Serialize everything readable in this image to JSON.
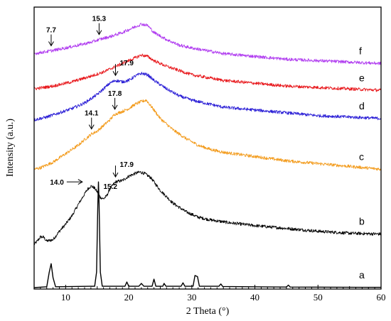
{
  "chart_data": {
    "type": "line",
    "title": "",
    "xlabel": "2 Theta (°)",
    "ylabel": "Intensity (a.u.)",
    "xlim": [
      5,
      60
    ],
    "ylim": [
      0,
      100
    ],
    "x_ticks": [
      10,
      20,
      30,
      40,
      50,
      60
    ],
    "y_ticks_shown": false,
    "grid": false,
    "legend": "none",
    "series": [
      {
        "name": "a",
        "color": "#000000",
        "offset": 0,
        "points": [
          [
            5,
            0.5
          ],
          [
            7,
            0.8
          ],
          [
            7.4,
            6
          ],
          [
            7.7,
            9
          ],
          [
            8,
            4
          ],
          [
            8.4,
            0.8
          ],
          [
            14.6,
            1
          ],
          [
            14.9,
            6
          ],
          [
            15.1,
            30
          ],
          [
            15.2,
            38
          ],
          [
            15.3,
            30
          ],
          [
            15.5,
            6
          ],
          [
            15.8,
            1
          ],
          [
            19.4,
            1
          ],
          [
            19.7,
            2.5
          ],
          [
            20,
            1
          ],
          [
            21.6,
            1
          ],
          [
            22,
            2
          ],
          [
            22.4,
            1
          ],
          [
            23.7,
            1
          ],
          [
            24,
            3.5
          ],
          [
            24.3,
            1
          ],
          [
            25.4,
            1
          ],
          [
            25.6,
            2
          ],
          [
            25.9,
            1
          ],
          [
            28.3,
            1
          ],
          [
            28.6,
            2.2
          ],
          [
            28.9,
            1
          ],
          [
            30.2,
            1
          ],
          [
            30.5,
            4.8
          ],
          [
            30.9,
            4.4
          ],
          [
            31.2,
            1
          ],
          [
            34.3,
            1
          ],
          [
            34.6,
            1.8
          ],
          [
            34.9,
            0.9
          ],
          [
            45,
            0.7
          ],
          [
            45.3,
            1.4
          ],
          [
            45.6,
            0.7
          ],
          [
            60,
            0.6
          ]
        ]
      },
      {
        "name": "b",
        "color": "#000000",
        "offset": 13,
        "points": [
          [
            5,
            15.8
          ],
          [
            5.5,
            17
          ],
          [
            6,
            18.5
          ],
          [
            6.5,
            18.4
          ],
          [
            7,
            17
          ],
          [
            8,
            17.5
          ],
          [
            9,
            20.5
          ],
          [
            10,
            23
          ],
          [
            11,
            26
          ],
          [
            12,
            30
          ],
          [
            12.8,
            33
          ],
          [
            13.5,
            35.5
          ],
          [
            14,
            36.5
          ],
          [
            14.5,
            36
          ],
          [
            15,
            34.5
          ],
          [
            15.5,
            32.5
          ],
          [
            16,
            32
          ],
          [
            16.5,
            33
          ],
          [
            17,
            35.5
          ],
          [
            17.9,
            38
          ],
          [
            19,
            38.5
          ],
          [
            20,
            40
          ],
          [
            21,
            41
          ],
          [
            21.8,
            41.5
          ],
          [
            22.5,
            41
          ],
          [
            23.5,
            39.5
          ],
          [
            25,
            35
          ],
          [
            27,
            30.5
          ],
          [
            29,
            27.5
          ],
          [
            31,
            25.5
          ],
          [
            33,
            24.5
          ],
          [
            36,
            23.5
          ],
          [
            40,
            22.5
          ],
          [
            45,
            21.5
          ],
          [
            50,
            20.5
          ],
          [
            55,
            19.8
          ],
          [
            60,
            19.5
          ]
        ]
      },
      {
        "name": "c",
        "color": "#f39c1e",
        "offset": 40,
        "points": [
          [
            5,
            42.5
          ],
          [
            6,
            43
          ],
          [
            8,
            45
          ],
          [
            10,
            48
          ],
          [
            12,
            51
          ],
          [
            13,
            53
          ],
          [
            14.1,
            55
          ],
          [
            15,
            56
          ],
          [
            16,
            58
          ],
          [
            17,
            60
          ],
          [
            17.8,
            62
          ],
          [
            19,
            63
          ],
          [
            20,
            64
          ],
          [
            21,
            65.5
          ],
          [
            22,
            66.5
          ],
          [
            22.8,
            67
          ],
          [
            24,
            63.5
          ],
          [
            25,
            60.5
          ],
          [
            27,
            56.5
          ],
          [
            29,
            53.5
          ],
          [
            31,
            51
          ],
          [
            33,
            49.5
          ],
          [
            35,
            48.5
          ],
          [
            40,
            47
          ],
          [
            45,
            45.5
          ],
          [
            50,
            44.5
          ],
          [
            55,
            43.5
          ],
          [
            60,
            42.5
          ]
        ]
      },
      {
        "name": "d",
        "color": "#2b1fd6",
        "offset": 58,
        "points": [
          [
            5,
            60
          ],
          [
            7,
            61
          ],
          [
            9,
            62.5
          ],
          [
            11,
            64
          ],
          [
            13,
            66
          ],
          [
            15,
            69
          ],
          [
            16,
            71
          ],
          [
            17,
            73
          ],
          [
            17.9,
            74
          ],
          [
            19,
            73.5
          ],
          [
            20,
            74
          ],
          [
            21,
            75.5
          ],
          [
            22,
            76.5
          ],
          [
            23,
            76
          ],
          [
            24,
            74
          ],
          [
            26,
            71
          ],
          [
            28,
            68.5
          ],
          [
            30,
            67
          ],
          [
            35,
            64.5
          ],
          [
            40,
            63.5
          ],
          [
            45,
            62.5
          ],
          [
            50,
            61.5
          ],
          [
            55,
            61
          ],
          [
            60,
            60.5
          ]
        ]
      },
      {
        "name": "e",
        "color": "#e8191d",
        "offset": 69,
        "points": [
          [
            5,
            71
          ],
          [
            8,
            72
          ],
          [
            11,
            73.5
          ],
          [
            14,
            75.5
          ],
          [
            16,
            77
          ],
          [
            18,
            79
          ],
          [
            20,
            81
          ],
          [
            21,
            82
          ],
          [
            22,
            83
          ],
          [
            23,
            82.5
          ],
          [
            24,
            81
          ],
          [
            26,
            79
          ],
          [
            28,
            77.5
          ],
          [
            30,
            76
          ],
          [
            35,
            74
          ],
          [
            40,
            73
          ],
          [
            45,
            72
          ],
          [
            50,
            71.5
          ],
          [
            55,
            71
          ],
          [
            60,
            70.5
          ]
        ]
      },
      {
        "name": "f",
        "color": "#b13ef0",
        "offset": 79,
        "points": [
          [
            5,
            83.5
          ],
          [
            7.7,
            84.5
          ],
          [
            10,
            85.5
          ],
          [
            12,
            86.5
          ],
          [
            14,
            87.5
          ],
          [
            15.3,
            88.5
          ],
          [
            17,
            89.5
          ],
          [
            19,
            91
          ],
          [
            20,
            92
          ],
          [
            21,
            93
          ],
          [
            22,
            94
          ],
          [
            23,
            93.5
          ],
          [
            24,
            91
          ],
          [
            26,
            88.5
          ],
          [
            28,
            86.5
          ],
          [
            30,
            85.5
          ],
          [
            35,
            83.5
          ],
          [
            40,
            82.5
          ],
          [
            45,
            81.5
          ],
          [
            50,
            81
          ],
          [
            55,
            80.5
          ],
          [
            60,
            80
          ]
        ]
      }
    ],
    "curve_labels": [
      "a",
      "b",
      "c",
      "d",
      "e",
      "f"
    ],
    "annotations": [
      {
        "text": "15.2",
        "x": 15.2,
        "series": "a",
        "arrow": "none"
      },
      {
        "text": "14.0",
        "x": 14.0,
        "series": "b",
        "arrow": "right"
      },
      {
        "text": "17.9",
        "x": 17.9,
        "series": "b",
        "arrow": "down"
      },
      {
        "text": "14.1",
        "x": 14.1,
        "series": "c",
        "arrow": "down"
      },
      {
        "text": "17.8",
        "x": 17.8,
        "series": "c",
        "arrow": "down"
      },
      {
        "text": "17.9",
        "x": 17.9,
        "series": "d",
        "arrow": "down"
      },
      {
        "text": "7.7",
        "x": 7.7,
        "series": "f",
        "arrow": "down"
      },
      {
        "text": "15.3",
        "x": 15.3,
        "series": "f",
        "arrow": "down"
      }
    ]
  }
}
